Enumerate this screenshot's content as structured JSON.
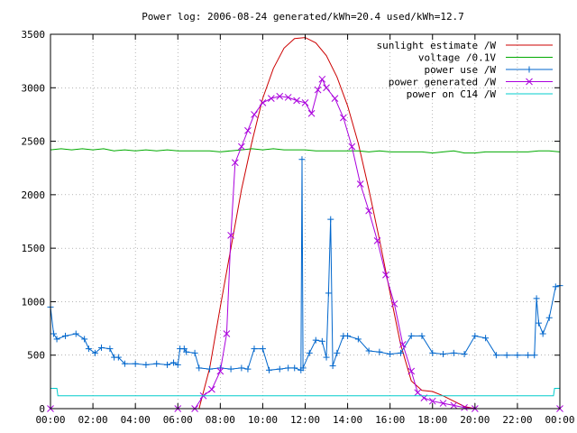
{
  "chart_data": {
    "type": "line",
    "title": "Power log: 2006-08-24 generated/kWh=20.4 used/kWh=12.7",
    "xlabel": "",
    "ylabel": "",
    "xlim": [
      0,
      24
    ],
    "ylim": [
      0,
      3500
    ],
    "x_ticks": [
      "00:00",
      "02:00",
      "04:00",
      "06:00",
      "08:00",
      "10:00",
      "12:00",
      "14:00",
      "16:00",
      "18:00",
      "20:00",
      "22:00",
      "00:00"
    ],
    "y_ticks": [
      0,
      500,
      1000,
      1500,
      2000,
      2500,
      3000,
      3500
    ],
    "legend_position": "top-right",
    "series": [
      {
        "name": "sunlight estimate /W",
        "color": "#cc0000",
        "marker": "none",
        "points": [
          [
            0,
            0
          ],
          [
            7,
            0
          ],
          [
            7.5,
            380
          ],
          [
            8,
            950
          ],
          [
            8.5,
            1500
          ],
          [
            9,
            2050
          ],
          [
            9.5,
            2500
          ],
          [
            10,
            2900
          ],
          [
            10.5,
            3180
          ],
          [
            11,
            3370
          ],
          [
            11.5,
            3460
          ],
          [
            12,
            3470
          ],
          [
            12.5,
            3420
          ],
          [
            13,
            3300
          ],
          [
            13.5,
            3100
          ],
          [
            14,
            2830
          ],
          [
            14.5,
            2480
          ],
          [
            15,
            2050
          ],
          [
            15.5,
            1580
          ],
          [
            16,
            1080
          ],
          [
            16.5,
            600
          ],
          [
            17,
            260
          ],
          [
            17.5,
            170
          ],
          [
            18,
            160
          ],
          [
            18.5,
            120
          ],
          [
            19,
            70
          ],
          [
            19.5,
            20
          ],
          [
            20,
            0
          ],
          [
            24,
            0
          ]
        ]
      },
      {
        "name": "voltage /0.1V",
        "color": "#00aa00",
        "marker": "none",
        "points": [
          [
            0,
            2420
          ],
          [
            0.5,
            2430
          ],
          [
            1,
            2420
          ],
          [
            1.5,
            2430
          ],
          [
            2,
            2420
          ],
          [
            2.5,
            2430
          ],
          [
            3,
            2410
          ],
          [
            3.5,
            2420
          ],
          [
            4,
            2410
          ],
          [
            4.5,
            2420
          ],
          [
            5,
            2410
          ],
          [
            5.5,
            2420
          ],
          [
            6,
            2410
          ],
          [
            6.5,
            2410
          ],
          [
            7,
            2410
          ],
          [
            7.5,
            2410
          ],
          [
            8,
            2400
          ],
          [
            8.5,
            2410
          ],
          [
            9,
            2420
          ],
          [
            9.5,
            2430
          ],
          [
            10,
            2420
          ],
          [
            10.5,
            2430
          ],
          [
            11,
            2420
          ],
          [
            11.5,
            2420
          ],
          [
            12,
            2420
          ],
          [
            12.5,
            2410
          ],
          [
            13,
            2410
          ],
          [
            13.5,
            2410
          ],
          [
            14,
            2410
          ],
          [
            14.5,
            2410
          ],
          [
            15,
            2400
          ],
          [
            15.5,
            2410
          ],
          [
            16,
            2400
          ],
          [
            16.5,
            2400
          ],
          [
            17,
            2400
          ],
          [
            17.5,
            2400
          ],
          [
            18,
            2390
          ],
          [
            18.5,
            2400
          ],
          [
            19,
            2410
          ],
          [
            19.5,
            2390
          ],
          [
            20,
            2390
          ],
          [
            20.5,
            2400
          ],
          [
            21,
            2400
          ],
          [
            21.5,
            2400
          ],
          [
            22,
            2400
          ],
          [
            22.5,
            2400
          ],
          [
            23,
            2410
          ],
          [
            23.5,
            2410
          ],
          [
            24,
            2400
          ]
        ]
      },
      {
        "name": "power use /W",
        "color": "#0066cc",
        "marker": "plus",
        "points": [
          [
            0,
            950
          ],
          [
            0.15,
            700
          ],
          [
            0.3,
            650
          ],
          [
            0.7,
            680
          ],
          [
            1.2,
            700
          ],
          [
            1.6,
            650
          ],
          [
            1.8,
            560
          ],
          [
            2.1,
            520
          ],
          [
            2.4,
            570
          ],
          [
            2.8,
            560
          ],
          [
            3,
            480
          ],
          [
            3.2,
            480
          ],
          [
            3.5,
            420
          ],
          [
            4,
            420
          ],
          [
            4.5,
            410
          ],
          [
            5,
            420
          ],
          [
            5.5,
            410
          ],
          [
            5.8,
            430
          ],
          [
            6.0,
            410
          ],
          [
            6.1,
            560
          ],
          [
            6.3,
            560
          ],
          [
            6.4,
            530
          ],
          [
            6.8,
            520
          ],
          [
            7,
            380
          ],
          [
            7.5,
            370
          ],
          [
            8,
            380
          ],
          [
            8.5,
            370
          ],
          [
            9,
            380
          ],
          [
            9.3,
            370
          ],
          [
            9.6,
            560
          ],
          [
            10,
            560
          ],
          [
            10.3,
            360
          ],
          [
            10.8,
            370
          ],
          [
            11.2,
            380
          ],
          [
            11.5,
            380
          ],
          [
            11.8,
            360
          ],
          [
            11.85,
            2330
          ],
          [
            11.9,
            380
          ],
          [
            12.2,
            520
          ],
          [
            12.5,
            640
          ],
          [
            12.8,
            630
          ],
          [
            13,
            480
          ],
          [
            13.1,
            1080
          ],
          [
            13.2,
            1770
          ],
          [
            13.3,
            400
          ],
          [
            13.5,
            520
          ],
          [
            13.8,
            680
          ],
          [
            14,
            680
          ],
          [
            14.5,
            650
          ],
          [
            15,
            540
          ],
          [
            15.5,
            530
          ],
          [
            16,
            510
          ],
          [
            16.5,
            520
          ],
          [
            17,
            680
          ],
          [
            17.5,
            680
          ],
          [
            18,
            520
          ],
          [
            18.5,
            510
          ],
          [
            19,
            520
          ],
          [
            19.5,
            510
          ],
          [
            20,
            680
          ],
          [
            20.5,
            660
          ],
          [
            21,
            500
          ],
          [
            21.5,
            500
          ],
          [
            22,
            500
          ],
          [
            22.5,
            500
          ],
          [
            22.8,
            500
          ],
          [
            22.9,
            1030
          ],
          [
            23,
            800
          ],
          [
            23.2,
            700
          ],
          [
            23.5,
            850
          ],
          [
            23.8,
            1140
          ],
          [
            24,
            1150
          ]
        ]
      },
      {
        "name": "power generated /W",
        "color": "#aa00dd",
        "marker": "cross",
        "points": [
          [
            0,
            0
          ],
          [
            6,
            0
          ],
          [
            6.8,
            0
          ],
          [
            7.2,
            120
          ],
          [
            7.6,
            180
          ],
          [
            8.0,
            350
          ],
          [
            8.3,
            700
          ],
          [
            8.5,
            1620
          ],
          [
            8.7,
            2300
          ],
          [
            9.0,
            2450
          ],
          [
            9.3,
            2600
          ],
          [
            9.6,
            2750
          ],
          [
            10,
            2860
          ],
          [
            10.4,
            2900
          ],
          [
            10.8,
            2920
          ],
          [
            11.2,
            2910
          ],
          [
            11.6,
            2880
          ],
          [
            12,
            2860
          ],
          [
            12.3,
            2760
          ],
          [
            12.6,
            2980
          ],
          [
            12.8,
            3080
          ],
          [
            13.0,
            3000
          ],
          [
            13.4,
            2900
          ],
          [
            13.8,
            2720
          ],
          [
            14.2,
            2450
          ],
          [
            14.6,
            2100
          ],
          [
            15.0,
            1850
          ],
          [
            15.4,
            1570
          ],
          [
            15.8,
            1250
          ],
          [
            16.2,
            980
          ],
          [
            16.6,
            600
          ],
          [
            17.0,
            350
          ],
          [
            17.3,
            150
          ],
          [
            17.6,
            100
          ],
          [
            18,
            70
          ],
          [
            18.5,
            50
          ],
          [
            19,
            30
          ],
          [
            19.5,
            10
          ],
          [
            20,
            0
          ],
          [
            24,
            0
          ]
        ]
      },
      {
        "name": "power on C14 /W",
        "color": "#00cccc",
        "marker": "none",
        "points": [
          [
            0,
            190
          ],
          [
            0.3,
            190
          ],
          [
            0.35,
            120
          ],
          [
            2,
            120
          ],
          [
            4,
            120
          ],
          [
            6,
            120
          ],
          [
            8,
            120
          ],
          [
            10,
            120
          ],
          [
            12,
            120
          ],
          [
            14,
            120
          ],
          [
            16,
            120
          ],
          [
            18,
            120
          ],
          [
            20,
            120
          ],
          [
            22,
            120
          ],
          [
            23.7,
            120
          ],
          [
            23.75,
            190
          ],
          [
            24,
            190
          ]
        ]
      }
    ]
  }
}
